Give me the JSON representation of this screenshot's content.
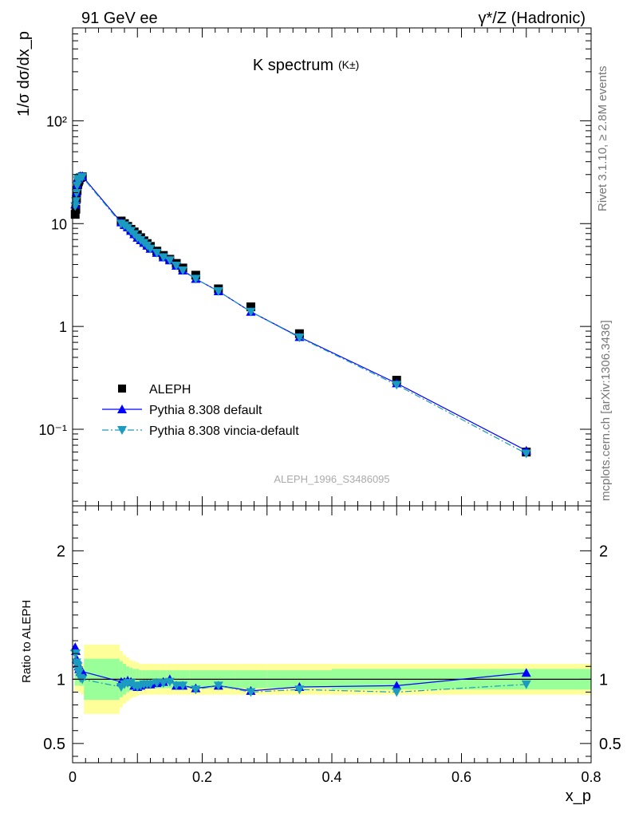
{
  "header": {
    "energy": "91 GeV ee",
    "process": "γ*/Z (Hadronic)"
  },
  "side_text": {
    "rivet": "Rivet 3.1.10, ≥ 2.8M events",
    "mcplots": "mcplots.cern.ch [arXiv:1306.3436]"
  },
  "chart_data": [
    {
      "type": "scatter",
      "title": "K spectrum",
      "title_sub": "(K±)",
      "analysis_tag": "ALEPH_1996_S3486095",
      "ylabel": "1/σ dσ/dx_p",
      "y_scale": "log",
      "ylim": [
        0.018,
        800
      ],
      "xlim": [
        0,
        0.8
      ],
      "y_tick_labels": [
        "10⁻¹",
        "1",
        "10",
        "10²"
      ],
      "legend": [
        "ALEPH",
        "Pythia 8.308 default",
        "Pythia 8.308 vincia-default"
      ],
      "legend_position": "bottom-left",
      "series": [
        {
          "name": "ALEPH",
          "color": "#000000",
          "marker": "square",
          "x": [
            0.004,
            0.005,
            0.006,
            0.007,
            0.008,
            0.009,
            0.01,
            0.012,
            0.015,
            0.075,
            0.08,
            0.085,
            0.09,
            0.095,
            0.1,
            0.105,
            0.11,
            0.115,
            0.12,
            0.13,
            0.14,
            0.15,
            0.16,
            0.17,
            0.19,
            0.225,
            0.275,
            0.35,
            0.5,
            0.7
          ],
          "y": [
            12.3,
            13.8,
            17.5,
            21.0,
            24.0,
            25.5,
            26.5,
            28.0,
            28.5,
            10.6,
            10.0,
            9.4,
            8.8,
            8.3,
            7.8,
            7.3,
            6.8,
            6.4,
            6.0,
            5.4,
            4.9,
            4.5,
            4.1,
            3.7,
            3.15,
            2.32,
            1.55,
            0.85,
            0.3,
            0.06
          ]
        },
        {
          "name": "Pythia 8.308 default",
          "color": "#0000ff",
          "marker": "triangle-up",
          "x": [
            0.004,
            0.005,
            0.006,
            0.007,
            0.008,
            0.009,
            0.01,
            0.012,
            0.015,
            0.075,
            0.08,
            0.085,
            0.09,
            0.095,
            0.1,
            0.105,
            0.11,
            0.115,
            0.12,
            0.13,
            0.14,
            0.15,
            0.16,
            0.17,
            0.19,
            0.225,
            0.275,
            0.35,
            0.5,
            0.7
          ],
          "y": [
            15.4,
            16.9,
            20.2,
            24.0,
            27.0,
            28.0,
            28.5,
            29.0,
            29.0,
            10.3,
            9.7,
            9.2,
            8.5,
            7.9,
            7.3,
            6.9,
            6.5,
            6.1,
            5.7,
            5.2,
            4.7,
            4.4,
            3.9,
            3.5,
            2.9,
            2.2,
            1.39,
            0.79,
            0.28,
            0.062
          ]
        },
        {
          "name": "Pythia 8.308 vincia-default",
          "color": "#1a9bbf",
          "marker": "triangle-down",
          "x": [
            0.004,
            0.005,
            0.006,
            0.007,
            0.008,
            0.009,
            0.01,
            0.012,
            0.015,
            0.075,
            0.08,
            0.085,
            0.09,
            0.095,
            0.1,
            0.105,
            0.11,
            0.115,
            0.12,
            0.13,
            0.14,
            0.15,
            0.16,
            0.17,
            0.19,
            0.225,
            0.275,
            0.35,
            0.5,
            0.7
          ],
          "y": [
            14.8,
            16.5,
            19.8,
            23.4,
            26.3,
            27.3,
            27.8,
            28.2,
            28.4,
            10.0,
            9.6,
            9.1,
            8.5,
            7.9,
            7.3,
            6.9,
            6.5,
            6.1,
            5.7,
            5.2,
            4.7,
            4.4,
            3.9,
            3.5,
            2.9,
            2.2,
            1.39,
            0.78,
            0.27,
            0.058
          ]
        }
      ]
    },
    {
      "type": "line",
      "ylabel": "Ratio to ALEPH",
      "xlabel": "x_p",
      "ylim": [
        0.35,
        2.35
      ],
      "xlim": [
        0,
        0.8
      ],
      "x_ticks": [
        0,
        0.2,
        0.4,
        0.6,
        0.8
      ],
      "y_ticks": [
        0.5,
        1,
        2
      ],
      "band_edges": [
        0.003,
        0.0045,
        0.0055,
        0.0065,
        0.0075,
        0.0085,
        0.0095,
        0.011,
        0.0135,
        0.0175,
        0.0725,
        0.0775,
        0.0825,
        0.0875,
        0.0925,
        0.0975,
        0.1025,
        0.1075,
        0.1125,
        0.1175,
        0.125,
        0.135,
        0.145,
        0.155,
        0.165,
        0.18,
        0.2,
        0.25,
        0.3,
        0.4,
        0.6,
        0.8
      ],
      "band_stat": [
        0.05,
        0.05,
        0.05,
        0.05,
        0.05,
        0.05,
        0.05,
        0.05,
        0.05,
        0.16,
        0.14,
        0.12,
        0.1,
        0.09,
        0.08,
        0.08,
        0.07,
        0.07,
        0.07,
        0.07,
        0.07,
        0.07,
        0.07,
        0.07,
        0.07,
        0.07,
        0.07,
        0.07,
        0.07,
        0.08,
        0.08
      ],
      "band_total": [
        0.1,
        0.1,
        0.1,
        0.1,
        0.1,
        0.1,
        0.1,
        0.1,
        0.12,
        0.27,
        0.22,
        0.19,
        0.17,
        0.15,
        0.14,
        0.13,
        0.12,
        0.12,
        0.12,
        0.12,
        0.12,
        0.12,
        0.12,
        0.12,
        0.12,
        0.12,
        0.12,
        0.12,
        0.12,
        0.12,
        0.12
      ],
      "band_colors": {
        "stat": "#99ff99",
        "total": "#ffff99"
      },
      "series": [
        {
          "name": "Pythia 8.308 default",
          "color": "#0000ff",
          "marker": "triangle-up",
          "x": [
            0.004,
            0.005,
            0.006,
            0.007,
            0.008,
            0.009,
            0.01,
            0.012,
            0.015,
            0.075,
            0.08,
            0.085,
            0.09,
            0.095,
            0.1,
            0.105,
            0.11,
            0.115,
            0.12,
            0.13,
            0.14,
            0.15,
            0.16,
            0.17,
            0.19,
            0.225,
            0.275,
            0.35,
            0.5,
            0.7
          ],
          "y": [
            1.25,
            1.22,
            1.16,
            1.15,
            1.12,
            1.1,
            1.08,
            1.06,
            1.06,
            0.98,
            0.98,
            0.99,
            0.98,
            0.95,
            0.94,
            0.95,
            0.96,
            0.96,
            0.96,
            0.97,
            0.98,
            1.0,
            0.95,
            0.95,
            0.93,
            0.95,
            0.91,
            0.94,
            0.95,
            1.05
          ]
        },
        {
          "name": "Pythia 8.308 vincia-default",
          "color": "#1a9bbf",
          "marker": "triangle-down",
          "x": [
            0.004,
            0.005,
            0.006,
            0.007,
            0.008,
            0.009,
            0.01,
            0.012,
            0.015,
            0.075,
            0.08,
            0.085,
            0.09,
            0.095,
            0.1,
            0.105,
            0.11,
            0.115,
            0.12,
            0.13,
            0.14,
            0.15,
            0.16,
            0.17,
            0.19,
            0.225,
            0.275,
            0.35,
            0.5,
            0.7
          ],
          "y": [
            1.2,
            1.2,
            1.13,
            1.11,
            1.1,
            1.07,
            1.05,
            1.01,
            1.0,
            0.94,
            0.96,
            0.97,
            0.97,
            0.95,
            0.94,
            0.95,
            0.96,
            0.96,
            0.96,
            0.97,
            0.97,
            0.98,
            0.95,
            0.95,
            0.92,
            0.95,
            0.9,
            0.92,
            0.9,
            0.96
          ]
        }
      ]
    }
  ]
}
